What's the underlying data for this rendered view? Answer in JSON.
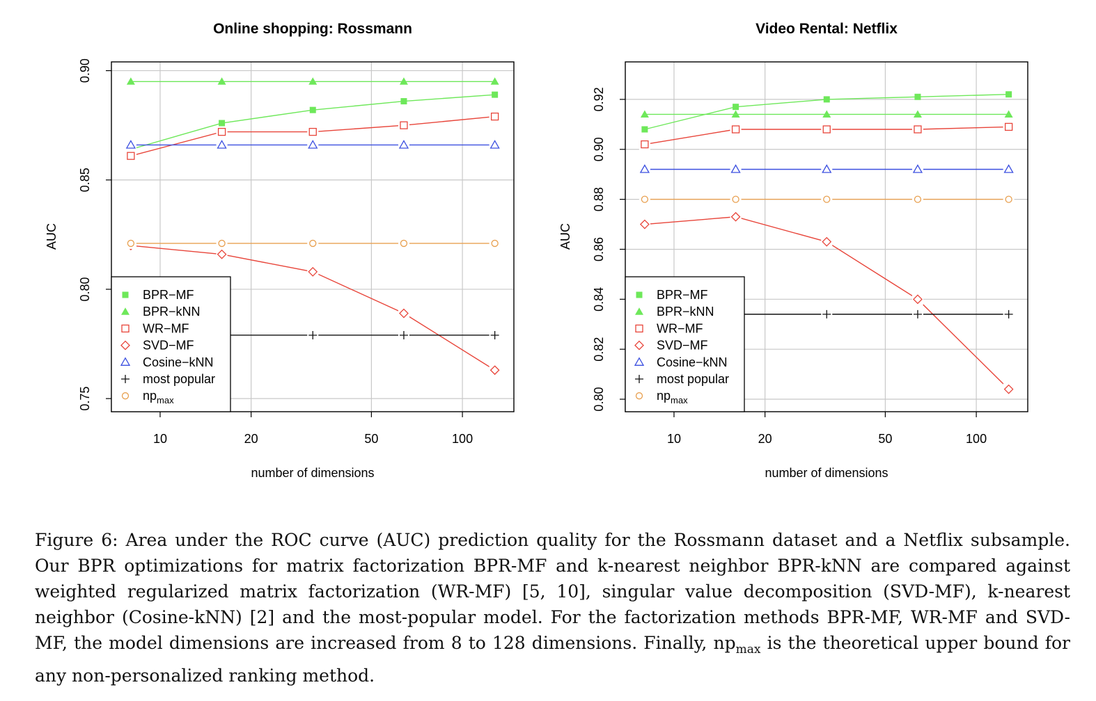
{
  "figure": {
    "caption_label": "Figure 6:",
    "caption_text_1": "Area under the ROC curve (AUC) prediction quality for the Rossmann dataset and a Netflix subsample. Our BPR optimizations for matrix factorization BPR-MF and k-nearest neighbor BPR-kNN are compared against weighted regularized matrix factorization (WR-MF) [5, 10], singular value decomposition (SVD-MF), k-nearest neighbor (Cosine-kNN) [2] and the most-popular model. For the factorization methods BPR-MF, WR-MF and SVD-MF, the model dimensions are increased from 8 to 128 dimensions. Finally, np",
    "caption_sub": "max",
    "caption_text_2": " is the theoretical upper bound for any non-personalized ranking method."
  },
  "chart_data": [
    {
      "type": "line",
      "title": "Online shopping: Rossmann",
      "xlabel": "number of dimensions",
      "ylabel": "AUC",
      "x_scale": "log",
      "x_ticks": [
        10,
        20,
        50,
        100
      ],
      "y_ticks": [
        0.75,
        0.8,
        0.85,
        0.9
      ],
      "y_tick_labels": [
        "0.75",
        "0.80",
        "0.85",
        "0.90"
      ],
      "xlim": [
        6.9,
        148
      ],
      "ylim": [
        0.744,
        0.904
      ],
      "grid": true,
      "legend_position": "bottom-left",
      "x": [
        8,
        16,
        32,
        64,
        128
      ],
      "series": [
        {
          "name": "BPR−MF",
          "name_sub": "",
          "color": "#6ee85a",
          "marker": "square-filled",
          "values": [
            0.864,
            0.876,
            0.882,
            0.886,
            0.889
          ]
        },
        {
          "name": "BPR−kNN",
          "name_sub": "",
          "color": "#6ee85a",
          "marker": "triangle-filled",
          "values": [
            0.895,
            0.895,
            0.895,
            0.895,
            0.895
          ]
        },
        {
          "name": "WR−MF",
          "name_sub": "",
          "color": "#e8453a",
          "marker": "square-open",
          "values": [
            0.861,
            0.872,
            0.872,
            0.875,
            0.879
          ]
        },
        {
          "name": "SVD−MF",
          "name_sub": "",
          "color": "#e8453a",
          "marker": "diamond-open",
          "values": [
            0.82,
            0.816,
            0.808,
            0.789,
            0.763
          ]
        },
        {
          "name": "Cosine−kNN",
          "name_sub": "",
          "color": "#3b4fe0",
          "marker": "triangle-open",
          "values": [
            0.866,
            0.866,
            0.866,
            0.866,
            0.866
          ]
        },
        {
          "name": "most popular",
          "name_sub": "",
          "color": "#111111",
          "marker": "plus",
          "values": [
            0.779,
            0.779,
            0.779,
            0.779,
            0.779
          ]
        },
        {
          "name": "np",
          "name_sub": "max",
          "color": "#e8a050",
          "marker": "circle-open",
          "values": [
            0.821,
            0.821,
            0.821,
            0.821,
            0.821
          ]
        }
      ]
    },
    {
      "type": "line",
      "title": "Video Rental: Netflix",
      "xlabel": "number of dimensions",
      "ylabel": "AUC",
      "x_scale": "log",
      "x_ticks": [
        10,
        20,
        50,
        100
      ],
      "y_ticks": [
        0.8,
        0.82,
        0.84,
        0.86,
        0.88,
        0.9,
        0.92
      ],
      "y_tick_labels": [
        "0.80",
        "0.82",
        "0.84",
        "0.86",
        "0.88",
        "0.90",
        "0.92"
      ],
      "xlim": [
        6.9,
        148
      ],
      "ylim": [
        0.795,
        0.935
      ],
      "grid": true,
      "legend_position": "bottom-left",
      "x": [
        8,
        16,
        32,
        64,
        128
      ],
      "series": [
        {
          "name": "BPR−MF",
          "name_sub": "",
          "color": "#6ee85a",
          "marker": "square-filled",
          "values": [
            0.908,
            0.917,
            0.92,
            0.921,
            0.922
          ]
        },
        {
          "name": "BPR−kNN",
          "name_sub": "",
          "color": "#6ee85a",
          "marker": "triangle-filled",
          "values": [
            0.914,
            0.914,
            0.914,
            0.914,
            0.914
          ]
        },
        {
          "name": "WR−MF",
          "name_sub": "",
          "color": "#e8453a",
          "marker": "square-open",
          "values": [
            0.902,
            0.908,
            0.908,
            0.908,
            0.909
          ]
        },
        {
          "name": "SVD−MF",
          "name_sub": "",
          "color": "#e8453a",
          "marker": "diamond-open",
          "values": [
            0.87,
            0.873,
            0.863,
            0.84,
            0.804
          ]
        },
        {
          "name": "Cosine−kNN",
          "name_sub": "",
          "color": "#3b4fe0",
          "marker": "triangle-open",
          "values": [
            0.892,
            0.892,
            0.892,
            0.892,
            0.892
          ]
        },
        {
          "name": "most popular",
          "name_sub": "",
          "color": "#111111",
          "marker": "plus",
          "values": [
            0.834,
            0.834,
            0.834,
            0.834,
            0.834
          ]
        },
        {
          "name": "np",
          "name_sub": "max",
          "color": "#e8a050",
          "marker": "circle-open",
          "values": [
            0.88,
            0.88,
            0.88,
            0.88,
            0.88
          ]
        }
      ]
    }
  ]
}
